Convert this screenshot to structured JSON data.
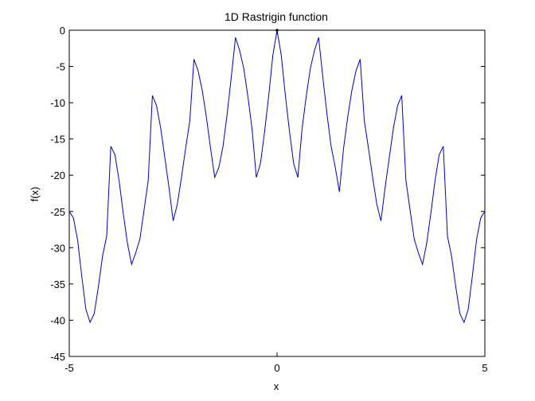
{
  "chart_data": {
    "type": "line",
    "title": "1D Rastrigin function",
    "xlabel": "x",
    "ylabel": "f(x)",
    "xlim": [
      -5,
      5
    ],
    "ylim": [
      -45,
      0
    ],
    "xticks": [
      -5,
      0,
      5
    ],
    "yticks": [
      0,
      -5,
      -10,
      -15,
      -20,
      -25,
      -30,
      -35,
      -40,
      -45
    ],
    "grid": false,
    "line_color": "#0000c8",
    "point_color": "#000000",
    "series": [
      {
        "x": [
          -5.0,
          -4.9,
          -4.8,
          -4.7,
          -4.6,
          -4.5,
          -4.4,
          -4.3,
          -4.2,
          -4.1,
          -4.0,
          -3.9,
          -3.8,
          -3.7,
          -3.6,
          -3.5,
          -3.4,
          -3.3,
          -3.2,
          -3.1,
          -3.0,
          -2.9,
          -2.8,
          -2.7,
          -2.6,
          -2.5,
          -2.4,
          -2.3,
          -2.2,
          -2.1,
          -2.0,
          -1.9,
          -1.8,
          -1.7,
          -1.6,
          -1.5,
          -1.4,
          -1.3,
          -1.2,
          -1.1,
          -1.0,
          -0.9,
          -0.8,
          -0.7,
          -0.6,
          -0.5,
          -0.4,
          -0.3,
          -0.2,
          -0.1,
          0.0,
          0.1,
          0.2,
          0.3,
          0.4,
          0.5,
          0.6,
          0.7,
          0.8,
          0.9,
          1.0,
          1.1,
          1.2,
          1.3,
          1.4,
          1.5,
          1.6,
          1.7,
          1.8,
          1.9,
          2.0,
          2.1,
          2.2,
          2.3,
          2.4,
          2.5,
          2.6,
          2.7,
          2.8,
          2.9,
          3.0,
          3.1,
          3.2,
          3.3,
          3.4,
          3.5,
          3.6,
          3.7,
          3.8,
          3.9,
          4.0,
          4.1,
          4.2,
          4.3,
          4.4,
          4.5,
          4.6,
          4.7,
          4.8,
          4.9,
          5.0
        ],
        "y": [
          -25.0,
          -25.9,
          -28.9,
          -33.9,
          -38.5,
          -40.3,
          -39.1,
          -35.4,
          -31.2,
          -28.4,
          -16.0,
          -17.2,
          -20.8,
          -25.3,
          -29.4,
          -32.3,
          -30.7,
          -28.8,
          -24.8,
          -20.7,
          -9.0,
          -10.4,
          -13.5,
          -17.6,
          -21.7,
          -26.3,
          -24.0,
          -20.3,
          -16.3,
          -12.5,
          -4.0,
          -5.6,
          -8.3,
          -12.0,
          -16.3,
          -20.3,
          -18.9,
          -16.0,
          -11.5,
          -6.4,
          -1.0,
          -2.8,
          -5.3,
          -9.2,
          -13.7,
          -20.3,
          -18.4,
          -14.0,
          -9.0,
          -3.4,
          0.0,
          -3.4,
          -9.0,
          -14.0,
          -18.4,
          -20.3,
          -13.7,
          -9.2,
          -5.3,
          -2.8,
          -1.0,
          -6.4,
          -11.5,
          -16.0,
          -18.9,
          -22.3,
          -16.3,
          -12.0,
          -8.3,
          -5.6,
          -4.0,
          -12.5,
          -16.3,
          -20.3,
          -24.0,
          -26.3,
          -21.7,
          -17.6,
          -13.5,
          -10.4,
          -9.0,
          -20.7,
          -24.8,
          -28.8,
          -30.7,
          -32.3,
          -29.4,
          -25.3,
          -20.8,
          -17.2,
          -16.0,
          -28.4,
          -31.2,
          -35.4,
          -39.1,
          -40.3,
          -38.5,
          -33.9,
          -28.9,
          -25.9,
          -25.0
        ]
      }
    ],
    "marker_point": {
      "x": 0,
      "y": 0
    }
  }
}
